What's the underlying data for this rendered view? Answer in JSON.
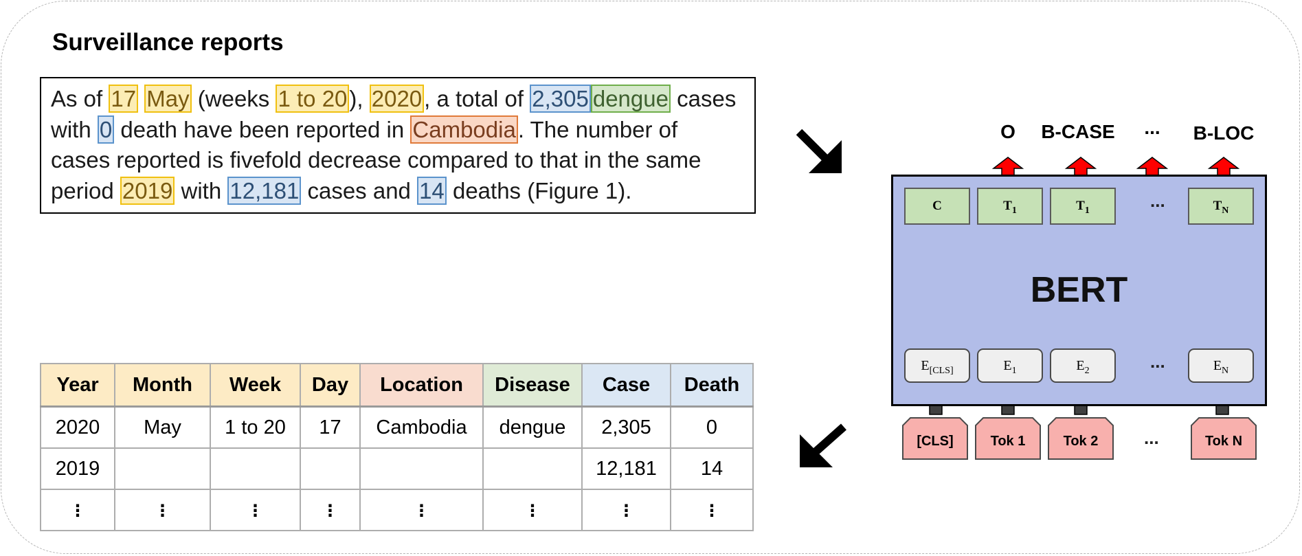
{
  "title": "Surveillance reports",
  "report": {
    "segments": [
      {
        "text": "As of ",
        "tag": ""
      },
      {
        "text": "17",
        "tag": "y"
      },
      {
        "text": " ",
        "tag": ""
      },
      {
        "text": "May",
        "tag": "y"
      },
      {
        "text": " (weeks ",
        "tag": ""
      },
      {
        "text": "1 to 20",
        "tag": "y"
      },
      {
        "text": "), ",
        "tag": ""
      },
      {
        "text": "2020",
        "tag": "y"
      },
      {
        "text": ", a total of ",
        "tag": ""
      },
      {
        "text": "2,305",
        "tag": "b"
      },
      {
        "text": "dengue",
        "tag": "g"
      },
      {
        "text": " cases",
        "tag": ""
      },
      {
        "text": "\n",
        "tag": "br"
      },
      {
        "text": "with ",
        "tag": ""
      },
      {
        "text": "0",
        "tag": "b"
      },
      {
        "text": " death have been reported in ",
        "tag": ""
      },
      {
        "text": "Cambodia",
        "tag": "o"
      },
      {
        "text": ". The number of",
        "tag": ""
      },
      {
        "text": "\n",
        "tag": "br"
      },
      {
        "text": "cases reported is fivefold decrease compared to that in the same",
        "tag": ""
      },
      {
        "text": "\n",
        "tag": "br"
      },
      {
        "text": "period ",
        "tag": ""
      },
      {
        "text": "2019",
        "tag": "y"
      },
      {
        "text": " with ",
        "tag": ""
      },
      {
        "text": "12,181",
        "tag": "b"
      },
      {
        "text": " cases and ",
        "tag": ""
      },
      {
        "text": "14",
        "tag": "b"
      },
      {
        "text": " deaths (Figure 1).",
        "tag": ""
      }
    ]
  },
  "table": {
    "headers": [
      {
        "label": "Year",
        "color": "yel"
      },
      {
        "label": "Month",
        "color": "yel"
      },
      {
        "label": "Week",
        "color": "yel"
      },
      {
        "label": "Day",
        "color": "yel"
      },
      {
        "label": "Location",
        "color": "org"
      },
      {
        "label": "Disease",
        "color": "grn"
      },
      {
        "label": "Case",
        "color": "blu"
      },
      {
        "label": "Death",
        "color": "blu"
      }
    ],
    "rows": [
      [
        "2020",
        "May",
        "1 to 20",
        "17",
        "Cambodia",
        "dengue",
        "2,305",
        "0"
      ],
      [
        "2019",
        "",
        "",
        "",
        "",
        "",
        "12,181",
        "14"
      ],
      [
        "⋮",
        "⋮",
        "⋮",
        "⋮",
        "⋮",
        "⋮",
        "⋮",
        "⋮"
      ]
    ]
  },
  "bert": {
    "label": "BERT",
    "outputs": [
      "O",
      "B-CASE",
      "...",
      "B-LOC"
    ],
    "top_boxes": [
      "C",
      "T1",
      "T1",
      "...",
      "TN"
    ],
    "embed_boxes": [
      "E[CLS]",
      "E1",
      "E2",
      "...",
      "EN"
    ],
    "tokens": [
      "[CLS]",
      "Tok 1",
      "Tok 2",
      "...",
      "Tok N"
    ]
  },
  "colors": {
    "highlight_yellow": "#fcedb5",
    "highlight_blue": "#d8e5f4",
    "highlight_green": "#d6e8cb",
    "highlight_orange": "#fad8c6",
    "bert_fill": "#b2bde8",
    "output_arrow": "#ff0000",
    "input_arrow": "#404040"
  }
}
